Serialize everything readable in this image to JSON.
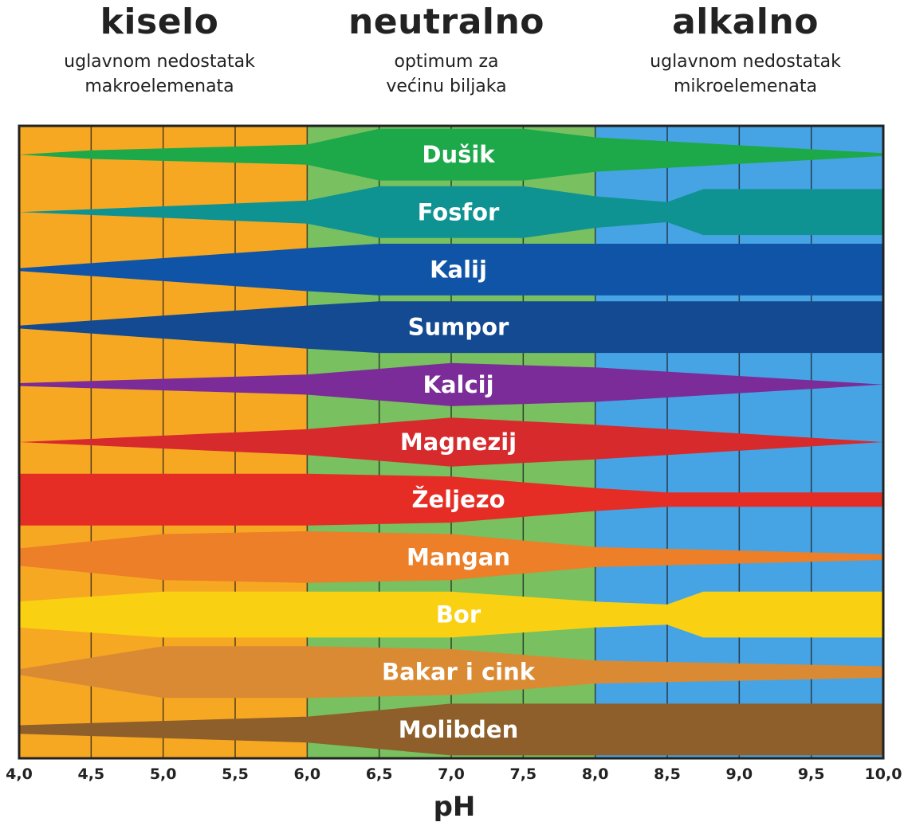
{
  "header": {
    "acid": {
      "title": "kiselo",
      "sub1": "uglavnom nedostatak",
      "sub2": "makroelemenata"
    },
    "neutral": {
      "title": "neutralno",
      "sub1": "optimum za",
      "sub2": "većinu biljaka"
    },
    "alkaline": {
      "title": "alkalno",
      "sub1": "uglavnom nedostatak",
      "sub2": "mikroelemenata"
    }
  },
  "zone_colors": {
    "acid": "#f7a823",
    "neutral": "#78c060",
    "alkaline": "#47a4e4"
  },
  "chart_data": {
    "type": "area",
    "xlabel": "pH",
    "xlim": [
      4.0,
      10.0
    ],
    "x_ticks": [
      4.0,
      4.5,
      5.0,
      5.5,
      6.0,
      6.5,
      7.0,
      7.5,
      8.0,
      8.5,
      9.0,
      9.5,
      10.0
    ],
    "x_tick_labels": [
      "4,0",
      "4,5",
      "5,0",
      "5,5",
      "6,0",
      "6,5",
      "7,0",
      "7,5",
      "8,0",
      "8,5",
      "9,0",
      "9,5",
      "10,0"
    ],
    "zones": [
      {
        "name": "kiselo",
        "from": 4.0,
        "to": 6.0,
        "color": "#f7a823"
      },
      {
        "name": "neutralno",
        "from": 6.0,
        "to": 8.0,
        "color": "#78c060"
      },
      {
        "name": "alkalno",
        "from": 8.0,
        "to": 10.0,
        "color": "#47a4e4"
      }
    ],
    "series": [
      {
        "name": "Dušik",
        "color": "#1da94a",
        "x": [
          4.0,
          4.5,
          6.0,
          6.5,
          7.5,
          8.0,
          10.0
        ],
        "thickness": [
          0.0,
          0.15,
          0.35,
          0.9,
          0.9,
          0.6,
          0.05
        ]
      },
      {
        "name": "Fosfor",
        "color": "#0f9392",
        "x": [
          4.0,
          6.0,
          6.5,
          7.5,
          8.0,
          8.5,
          8.75,
          10.0
        ],
        "thickness": [
          0.0,
          0.4,
          0.9,
          0.9,
          0.55,
          0.35,
          0.8,
          0.8
        ]
      },
      {
        "name": "Kalij",
        "color": "#1054a8",
        "x": [
          4.0,
          6.0,
          6.5,
          10.0
        ],
        "thickness": [
          0.05,
          0.75,
          0.9,
          0.9
        ]
      },
      {
        "name": "Sumpor",
        "color": "#134a91",
        "x": [
          4.0,
          6.0,
          6.5,
          10.0
        ],
        "thickness": [
          0.05,
          0.75,
          0.9,
          0.9
        ]
      },
      {
        "name": "Kalcij",
        "color": "#7b2c98",
        "x": [
          4.0,
          6.0,
          7.0,
          8.0,
          10.0
        ],
        "thickness": [
          0.05,
          0.35,
          0.75,
          0.6,
          0.0
        ]
      },
      {
        "name": "Magnezij",
        "color": "#d62a2d",
        "x": [
          4.0,
          6.0,
          7.0,
          8.0,
          10.0
        ],
        "thickness": [
          0.0,
          0.45,
          0.85,
          0.6,
          0.0
        ]
      },
      {
        "name": "Željezo",
        "color": "#e52d25",
        "x": [
          4.0,
          6.0,
          7.0,
          8.0,
          8.5,
          10.0
        ],
        "thickness": [
          0.9,
          0.9,
          0.8,
          0.4,
          0.25,
          0.25
        ]
      },
      {
        "name": "Mangan",
        "color": "#ec7f28",
        "x": [
          4.0,
          5.0,
          6.0,
          7.0,
          8.0,
          10.0
        ],
        "thickness": [
          0.3,
          0.8,
          0.9,
          0.8,
          0.35,
          0.1
        ]
      },
      {
        "name": "Bor",
        "color": "#fad112",
        "x": [
          4.0,
          5.0,
          6.0,
          7.0,
          8.0,
          8.5,
          8.75,
          10.0
        ],
        "thickness": [
          0.45,
          0.8,
          0.8,
          0.8,
          0.45,
          0.35,
          0.8,
          0.8
        ]
      },
      {
        "name": "Bakar i cink",
        "color": "#db8a34",
        "x": [
          4.0,
          5.0,
          6.0,
          7.0,
          8.0,
          10.0
        ],
        "thickness": [
          0.1,
          0.9,
          0.9,
          0.8,
          0.4,
          0.2
        ]
      },
      {
        "name": "Molibden",
        "color": "#8e5f2a",
        "x": [
          4.0,
          6.0,
          7.0,
          10.0
        ],
        "thickness": [
          0.15,
          0.45,
          0.9,
          0.9
        ]
      }
    ]
  }
}
